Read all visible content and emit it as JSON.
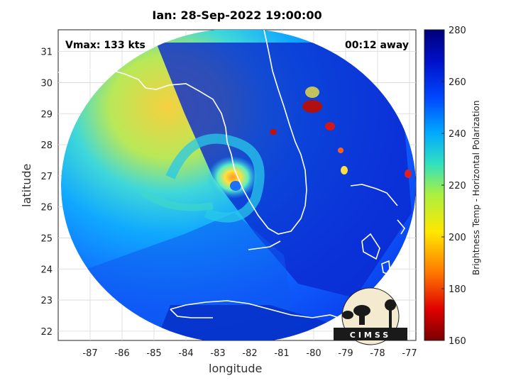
{
  "title": "Ian: 28-Sep-2022 19:00:00",
  "vmax_label": "Vmax: 133 kts",
  "time_label": "00:12 away",
  "axes": {
    "xlabel": "longitude",
    "ylabel": "latitude",
    "x_ticks": [
      "-87",
      "-86",
      "-85",
      "-84",
      "-83",
      "-82",
      "-81",
      "-80",
      "-79",
      "-78",
      "-77"
    ],
    "y_ticks": [
      "31",
      "30",
      "29",
      "28",
      "27",
      "26",
      "25",
      "24",
      "23",
      "22"
    ],
    "xlim": [
      -88.0,
      -76.8
    ],
    "ylim": [
      21.7,
      31.7
    ]
  },
  "colorbar": {
    "label": "Brightness Temp - Horizontal Polarization",
    "ticks": [
      "280",
      "260",
      "240",
      "220",
      "200",
      "180",
      "160"
    ],
    "range": [
      160,
      280
    ],
    "colors": [
      "#7a0000",
      "#e00000",
      "#ff7a00",
      "#ffe800",
      "#aaf040",
      "#30e0c0",
      "#00a8ff",
      "#0048ff",
      "#0010c8",
      "#00007a"
    ]
  },
  "logo": {
    "text": "CIMSS"
  },
  "storm": {
    "name": "Ian",
    "eye_lon": -82.3,
    "eye_lat": 26.6
  }
}
